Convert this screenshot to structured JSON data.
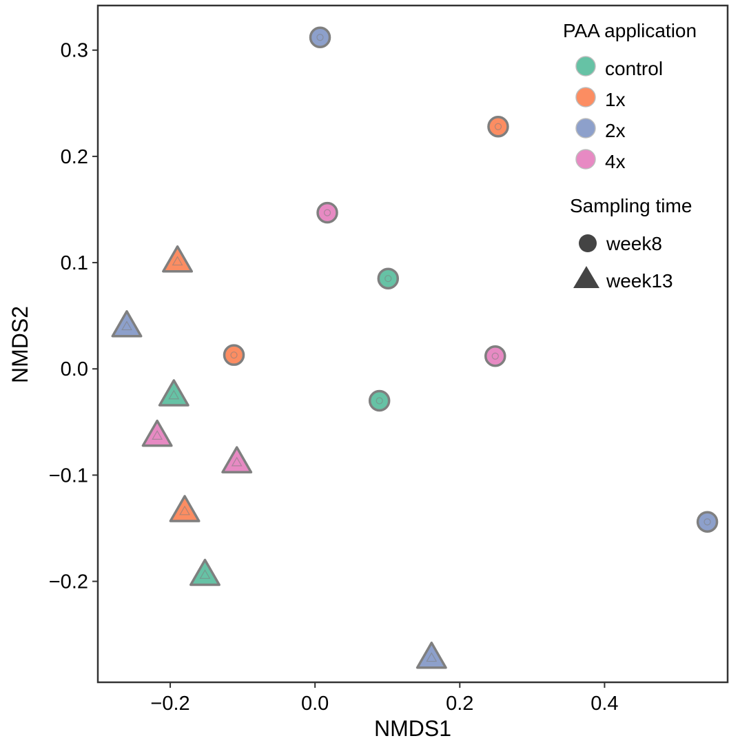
{
  "chart_data": {
    "type": "scatter",
    "xlabel": "NMDS1",
    "ylabel": "NMDS2",
    "xlim": [
      -0.3,
      0.57
    ],
    "ylim": [
      -0.295,
      0.342
    ],
    "x_ticks": [
      -0.2,
      0.0,
      0.2,
      0.4
    ],
    "x_tick_labels": [
      "−0.2",
      "0.0",
      "0.2",
      "0.4"
    ],
    "y_ticks": [
      -0.2,
      -0.1,
      0.0,
      0.1,
      0.2,
      0.3
    ],
    "y_tick_labels": [
      "−0.2",
      "−0.1",
      "0.0",
      "0.1",
      "0.2",
      "0.3"
    ],
    "grid": false,
    "legend_position": "top-right",
    "color_legend": {
      "title": "PAA application",
      "entries": [
        {
          "label": "control",
          "color": "#66c2a5"
        },
        {
          "label": "1x",
          "color": "#fc8d62"
        },
        {
          "label": "2x",
          "color": "#8da0cb"
        },
        {
          "label": "4x",
          "color": "#e78ac3"
        }
      ]
    },
    "shape_legend": {
      "title": "Sampling time",
      "entries": [
        {
          "label": "week8",
          "shape": "circle"
        },
        {
          "label": "week13",
          "shape": "triangle"
        }
      ]
    },
    "points": [
      {
        "x": 0.007,
        "y": 0.312,
        "group": "2x",
        "time": "week8"
      },
      {
        "x": 0.253,
        "y": 0.228,
        "group": "1x",
        "time": "week8"
      },
      {
        "x": 0.017,
        "y": 0.147,
        "group": "4x",
        "time": "week8"
      },
      {
        "x": 0.101,
        "y": 0.085,
        "group": "control",
        "time": "week8"
      },
      {
        "x": -0.112,
        "y": 0.013,
        "group": "1x",
        "time": "week8"
      },
      {
        "x": 0.249,
        "y": 0.012,
        "group": "4x",
        "time": "week8"
      },
      {
        "x": 0.089,
        "y": -0.03,
        "group": "control",
        "time": "week8"
      },
      {
        "x": 0.542,
        "y": -0.144,
        "group": "2x",
        "time": "week8"
      },
      {
        "x": -0.19,
        "y": 0.103,
        "group": "1x",
        "time": "week13"
      },
      {
        "x": -0.26,
        "y": 0.042,
        "group": "2x",
        "time": "week13"
      },
      {
        "x": -0.195,
        "y": -0.023,
        "group": "control",
        "time": "week13"
      },
      {
        "x": -0.218,
        "y": -0.061,
        "group": "4x",
        "time": "week13"
      },
      {
        "x": -0.108,
        "y": -0.086,
        "group": "4x",
        "time": "week13"
      },
      {
        "x": -0.18,
        "y": -0.132,
        "group": "1x",
        "time": "week13"
      },
      {
        "x": -0.152,
        "y": -0.192,
        "group": "control",
        "time": "week13"
      },
      {
        "x": 0.161,
        "y": -0.27,
        "group": "2x",
        "time": "week13"
      }
    ]
  }
}
